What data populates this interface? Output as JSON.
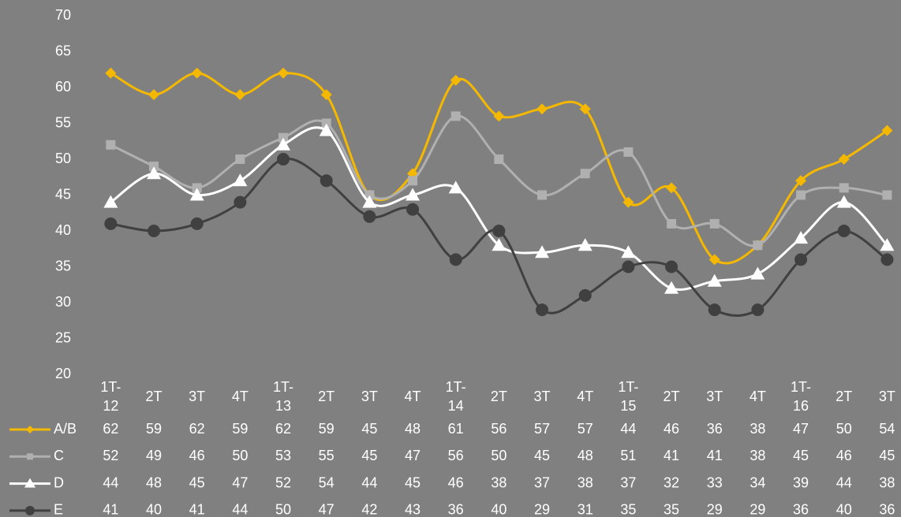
{
  "chart_data": {
    "type": "line",
    "categories": [
      "1T-12",
      "2T",
      "3T",
      "4T",
      "1T-13",
      "2T",
      "3T",
      "4T",
      "1T-14",
      "2T",
      "3T",
      "4T",
      "1T-15",
      "2T",
      "3T",
      "4T",
      "1T-16",
      "2T",
      "3T"
    ],
    "series": [
      {
        "name": "A/B",
        "color": "#f5b800",
        "marker": "diamond",
        "values": [
          62,
          59,
          62,
          59,
          62,
          59,
          45,
          48,
          61,
          56,
          57,
          57,
          44,
          46,
          36,
          38,
          47,
          50,
          54
        ]
      },
      {
        "name": "C",
        "color": "#b0b0b0",
        "marker": "square",
        "values": [
          52,
          49,
          46,
          50,
          53,
          55,
          45,
          47,
          56,
          50,
          45,
          48,
          51,
          41,
          41,
          38,
          45,
          46,
          45
        ]
      },
      {
        "name": "D",
        "color": "#ffffff",
        "marker": "triangle",
        "values": [
          44,
          48,
          45,
          47,
          52,
          54,
          44,
          45,
          46,
          38,
          37,
          38,
          37,
          32,
          33,
          34,
          39,
          44,
          38
        ]
      },
      {
        "name": "E",
        "color": "#404040",
        "marker": "circle",
        "values": [
          41,
          40,
          41,
          44,
          50,
          47,
          42,
          43,
          36,
          40,
          29,
          31,
          35,
          35,
          29,
          29,
          36,
          40,
          36
        ]
      }
    ],
    "ylim": [
      20,
      70
    ],
    "yticks": [
      20,
      25,
      30,
      35,
      40,
      45,
      50,
      55,
      60,
      65,
      70
    ],
    "grid": false,
    "smooth": true
  }
}
